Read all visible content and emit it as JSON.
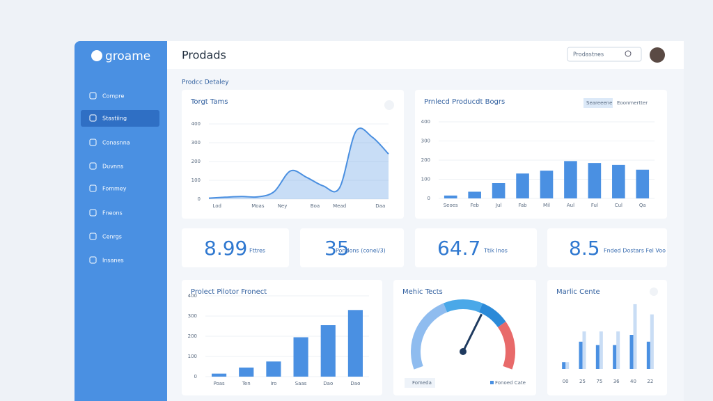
{
  "brand": "groame",
  "header": {
    "title": "Prodads",
    "search": "Prodastnes"
  },
  "sidebar": {
    "items": [
      "Compre",
      "Stastiing",
      "Conasnna",
      "Duvnns",
      "Fommey",
      "Fneons",
      "Cenrgs",
      "Insanes"
    ],
    "active": 1
  },
  "section_title": "Prodcc Detaley",
  "area_chart": {
    "type": "area",
    "title": "Torgt Tams",
    "x": [
      0,
      1,
      2,
      3,
      4,
      5,
      6,
      7,
      8,
      9,
      10,
      11
    ],
    "values": [
      5,
      10,
      14,
      12,
      40,
      150,
      115,
      70,
      60,
      360,
      330,
      240
    ],
    "xlim": [
      0,
      11
    ],
    "xticks": [
      {
        "value": 0.5,
        "label": "Lod"
      },
      {
        "value": 3,
        "label": "Moas"
      },
      {
        "value": 4.5,
        "label": "Ney"
      },
      {
        "value": 6.5,
        "label": "Boa"
      },
      {
        "value": 8,
        "label": "Mead"
      },
      {
        "value": 10.5,
        "label": "Daa"
      }
    ],
    "ylim": [
      0,
      400
    ],
    "yticks": [
      0,
      100,
      200,
      300,
      400
    ],
    "color": "#4a8fe0"
  },
  "bar_chart": {
    "type": "bar",
    "title": "Prnlecd Producdt Bogrs",
    "tabs": [
      "Seareeene",
      "Eoonmertter"
    ],
    "categories": [
      "Seoes",
      "Feb",
      "Jul",
      "Fab",
      "Mil",
      "Aul",
      "Ful",
      "Cul",
      "Qa"
    ],
    "values": [
      15,
      35,
      80,
      130,
      145,
      195,
      185,
      175,
      150
    ],
    "ylim": [
      0,
      400
    ],
    "yticks": [
      0,
      100,
      200,
      300,
      400
    ],
    "color": "#4a90e2"
  },
  "stats": [
    {
      "value": 8.99,
      "label": "Fttres"
    },
    {
      "value": 35,
      "label": "Pondons (conel/3)"
    },
    {
      "value": 64.7,
      "label": "Ttik Inos"
    },
    {
      "value": 8.5,
      "label": "Fnded Dostars Fel Voo"
    }
  ],
  "bar_chart_2": {
    "type": "bar",
    "title": "Prolect Pilotor Fronect",
    "categories": [
      "Poas",
      "Ten",
      "Iro",
      "Saas",
      "Dao",
      "Dao"
    ],
    "values": [
      15,
      45,
      75,
      195,
      255,
      330
    ],
    "ylim": [
      0,
      400
    ],
    "yticks": [
      0,
      100,
      200,
      300,
      400
    ],
    "color": "#4a90e2"
  },
  "gauge": {
    "type": "gauge",
    "title": "Mehic Tects",
    "range": [
      0,
      100
    ],
    "value": 62,
    "segments": [
      {
        "value": 40,
        "color": "#8fbcef"
      },
      {
        "value": 20,
        "color": "#4aa8e8"
      },
      {
        "value": 15,
        "color": "#2b8ad8"
      },
      {
        "value": 25,
        "color": "#e86a6a"
      }
    ],
    "legend": [
      "Fomeda",
      "Fonoed Cate"
    ]
  },
  "grouped_chart": {
    "type": "grouped",
    "title": "Marlic Cente",
    "categories": [
      "00",
      "25",
      "75",
      "36",
      "40",
      "22"
    ],
    "ylim": [
      0,
      100
    ],
    "series": [
      {
        "color": "#c9ddf5",
        "values": [
          10,
          55,
          55,
          55,
          95,
          80
        ]
      },
      {
        "color": "#4a90e2",
        "values": [
          10,
          40,
          35,
          35,
          50,
          40
        ]
      }
    ]
  }
}
